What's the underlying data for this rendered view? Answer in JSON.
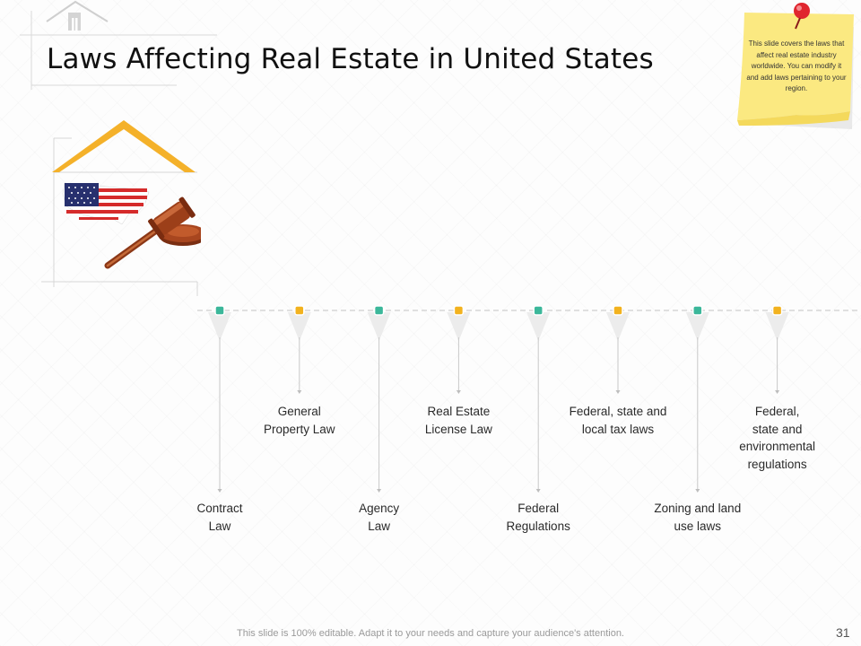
{
  "slide": {
    "title": "Laws Affecting Real Estate in United States",
    "sticky_note": "This slide covers the laws that affect real estate industry worldwide. You can modify it and add laws pertaining to your region.",
    "footer": "This slide is 100% editable. Adapt it to your needs and capture your audience's attention.",
    "page_number": "31"
  },
  "colors": {
    "teal": "#3bb79a",
    "amber": "#f2b21e",
    "roof": "#f4b12a",
    "sticky": "#fbe981"
  },
  "timeline": {
    "items": [
      {
        "label": "Contract Law",
        "lines": [
          "Contract",
          "Law"
        ],
        "color": "teal",
        "position": "below"
      },
      {
        "label": "General Property Law",
        "lines": [
          "General",
          "Property Law"
        ],
        "color": "amber",
        "position": "above"
      },
      {
        "label": "Agency Law",
        "lines": [
          "Agency",
          "Law"
        ],
        "color": "teal",
        "position": "below"
      },
      {
        "label": "Real Estate License Law",
        "lines": [
          "Real Estate",
          "License Law"
        ],
        "color": "amber",
        "position": "above"
      },
      {
        "label": "Federal Regulations",
        "lines": [
          "Federal",
          "Regulations"
        ],
        "color": "teal",
        "position": "below"
      },
      {
        "label": "Federal, state and local tax laws",
        "lines": [
          "Federal, state and",
          "local tax laws"
        ],
        "color": "amber",
        "position": "above"
      },
      {
        "label": "Zoning and land use laws",
        "lines": [
          "Zoning and land",
          "use laws"
        ],
        "color": "teal",
        "position": "below"
      },
      {
        "label": "Federal, state and environmental regulations",
        "lines": [
          "Federal,",
          "state and",
          "environmental",
          "regulations"
        ],
        "color": "amber",
        "position": "above"
      }
    ]
  }
}
